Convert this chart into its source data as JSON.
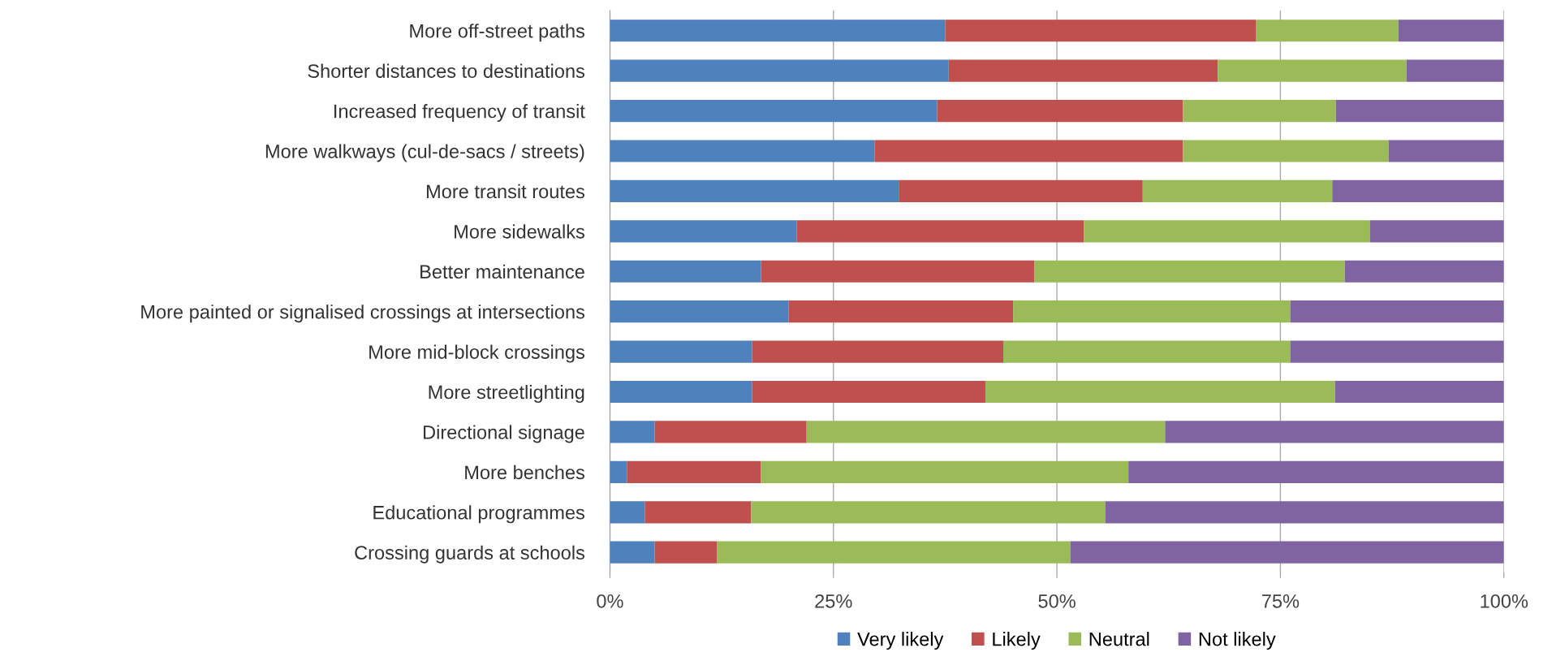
{
  "chart_data": {
    "type": "bar",
    "orientation": "horizontal",
    "stacked": true,
    "categories": [
      "More off-street paths",
      "Shorter distances to destinations",
      "Increased frequency of transit",
      "More walkways (cul-de-sacs / streets)",
      "More transit routes",
      "More sidewalks",
      "Better maintenance",
      "More painted or signalised crossings at intersections",
      "More mid-block crossings",
      "More streetlighting",
      "Directional signage",
      "More benches",
      "Educational programmes",
      "Crossing guards at schools"
    ],
    "series": [
      {
        "name": "Very likely",
        "color": "#4f81bd",
        "values": [
          37.5,
          37.9,
          36.6,
          29.6,
          32.3,
          20.9,
          16.9,
          20.0,
          15.9,
          15.9,
          5.0,
          1.9,
          3.9,
          5.0
        ]
      },
      {
        "name": "Likely",
        "color": "#c0504d",
        "values": [
          34.8,
          30.1,
          27.5,
          34.5,
          27.3,
          32.1,
          30.6,
          25.1,
          28.1,
          26.1,
          17.0,
          15.0,
          11.9,
          7.0
        ]
      },
      {
        "name": "Neutral",
        "color": "#9bbb59",
        "values": [
          15.9,
          21.1,
          17.1,
          23.0,
          21.2,
          32.0,
          34.7,
          31.0,
          32.1,
          39.1,
          40.1,
          41.1,
          39.6,
          39.5
        ]
      },
      {
        "name": "Not likely",
        "color": "#8064a2",
        "values": [
          11.8,
          10.9,
          18.8,
          12.9,
          19.2,
          15.0,
          17.8,
          23.9,
          23.9,
          18.9,
          37.9,
          42.0,
          44.6,
          48.5
        ]
      }
    ],
    "xlim": [
      0,
      100
    ],
    "xticks": [
      {
        "value": 0,
        "label": "0%"
      },
      {
        "value": 25,
        "label": "25%"
      },
      {
        "value": 50,
        "label": "50%"
      },
      {
        "value": 75,
        "label": "75%"
      },
      {
        "value": 100,
        "label": "100%"
      }
    ],
    "grid": "x",
    "legend": "bottom"
  }
}
